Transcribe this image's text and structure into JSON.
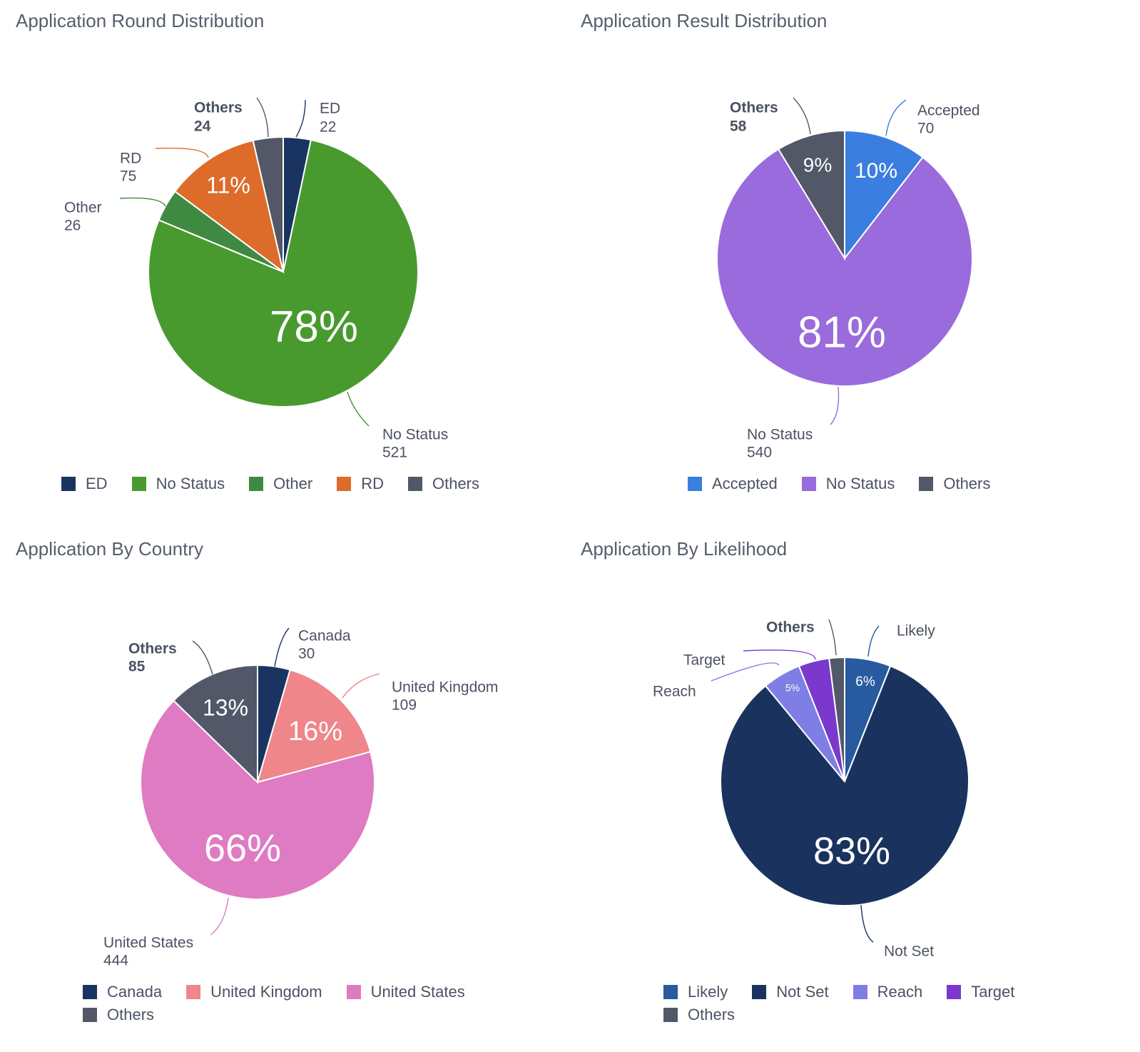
{
  "chart_data": [
    {
      "type": "pie",
      "title": "Application Round Distribution",
      "categories": [
        "ED",
        "No Status",
        "Other",
        "RD",
        "Others"
      ],
      "values": [
        22,
        521,
        26,
        75,
        24
      ],
      "slice_labels": [
        "",
        "78%",
        "",
        "11%",
        ""
      ],
      "colors": [
        "#1a3461",
        "#489a2e",
        "#3f8a42",
        "#dd6c2a",
        "#525868"
      ],
      "bold_names": [
        "Others"
      ],
      "legend": [
        "ED",
        "No Status",
        "Other",
        "RD",
        "Others"
      ]
    },
    {
      "type": "pie",
      "title": "Application Result Distribution",
      "categories": [
        "Accepted",
        "No Status",
        "Others"
      ],
      "values": [
        70,
        540,
        58
      ],
      "slice_labels": [
        "10%",
        "81%",
        "9%"
      ],
      "colors": [
        "#3a7ee0",
        "#9a6bdc",
        "#525868"
      ],
      "bold_names": [
        "Others"
      ],
      "legend": [
        "Accepted",
        "No Status",
        "Others"
      ]
    },
    {
      "type": "pie",
      "title": "Application By Country",
      "categories": [
        "Canada",
        "United Kingdom",
        "United States",
        "Others"
      ],
      "values": [
        30,
        109,
        444,
        85
      ],
      "slice_labels": [
        "",
        "16%",
        "66%",
        "13%"
      ],
      "colors": [
        "#1a3461",
        "#ef8689",
        "#df7bc2",
        "#525868"
      ],
      "bold_names": [
        "Others"
      ],
      "legend": [
        "Canada",
        "United Kingdom",
        "United States",
        "Others"
      ]
    },
    {
      "type": "pie",
      "title": "Application By Likelihood",
      "categories": [
        "Likely",
        "Not Set",
        "Reach",
        "Target",
        "Others"
      ],
      "values": [
        6,
        83,
        5,
        4,
        2
      ],
      "slice_labels": [
        "6%",
        "83%",
        "5%",
        "",
        ""
      ],
      "colors": [
        "#285a9f",
        "#19335e",
        "#7f7ee4",
        "#7b38cc",
        "#525868"
      ],
      "bold_names": [
        "Others"
      ],
      "legend": [
        "Likely",
        "Not Set",
        "Reach",
        "Target",
        "Others"
      ]
    }
  ]
}
